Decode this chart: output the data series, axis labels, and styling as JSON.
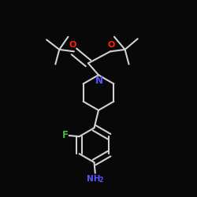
{
  "bg_color": "#080808",
  "line_color": "#d0d0d0",
  "N_color": "#5555ff",
  "O_color": "#ff2200",
  "F_color": "#44bb44",
  "NH2_color": "#5555ff",
  "lw": 1.5,
  "figsize": [
    2.5,
    2.5
  ],
  "dpi": 100,
  "xlim": [
    0,
    1
  ],
  "ylim": [
    0,
    1
  ]
}
